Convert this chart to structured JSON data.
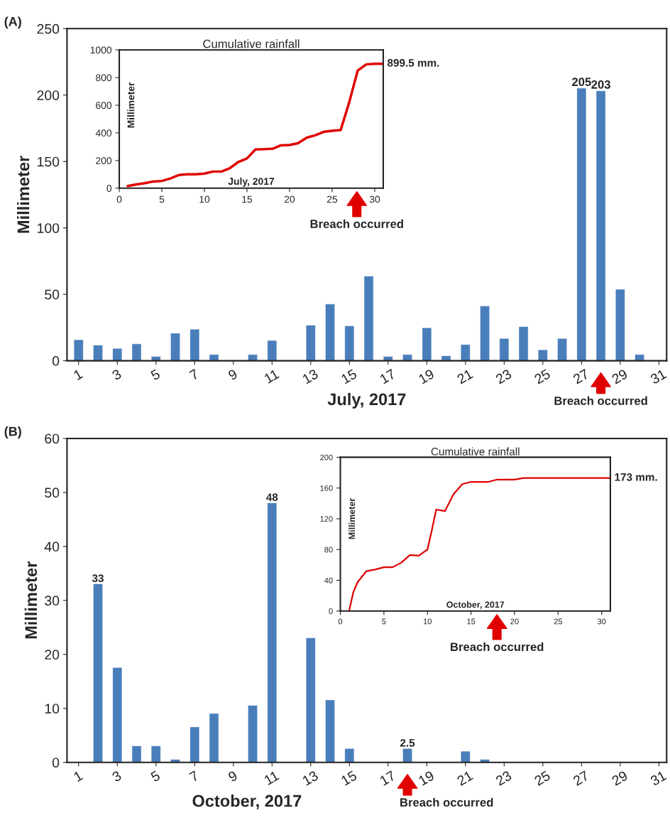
{
  "chart_data": [
    {
      "type": "bar",
      "x": [
        1,
        2,
        3,
        4,
        5,
        6,
        7,
        8,
        9,
        10,
        11,
        12,
        13,
        14,
        15,
        16,
        17,
        18,
        19,
        20,
        21,
        22,
        23,
        24,
        25,
        26,
        27,
        28,
        29,
        30,
        31
      ],
      "values": [
        15.5,
        11.5,
        9,
        12.5,
        3,
        20.5,
        23.5,
        4.5,
        0,
        4.5,
        15,
        0,
        26.5,
        42.5,
        26,
        63.5,
        3,
        4.5,
        24.5,
        3.5,
        12,
        41,
        16.5,
        25.5,
        8,
        16.5,
        205,
        203,
        53.5,
        4.5,
        0
      ],
      "value_labels": [
        null,
        null,
        null,
        null,
        null,
        null,
        null,
        null,
        null,
        null,
        null,
        null,
        null,
        null,
        null,
        null,
        null,
        null,
        null,
        null,
        null,
        null,
        null,
        null,
        null,
        null,
        "205",
        "203",
        null,
        null,
        null
      ],
      "color": "#4a7ebb",
      "xlim": [
        0.4,
        31.4
      ],
      "xticks": [
        1,
        3,
        5,
        7,
        9,
        11,
        13,
        15,
        17,
        19,
        21,
        23,
        25,
        27,
        29,
        31
      ],
      "ylim": [
        0,
        250
      ],
      "yticks": [
        0,
        50,
        100,
        150,
        200,
        250
      ],
      "xlabel": "July, 2017",
      "ylabel": "Millimeter",
      "annotations": [
        "(A)",
        {
          "text": "Breach occurred",
          "x": 28,
          "y": 0
        }
      ]
    },
    {
      "type": "line",
      "x": [
        1,
        2,
        3,
        4,
        5,
        6,
        7,
        8,
        9,
        10,
        11,
        12,
        13,
        14,
        15,
        16,
        17,
        18,
        19,
        20,
        21,
        22,
        23,
        24,
        25,
        26,
        27,
        28,
        29,
        30,
        31
      ],
      "values": [
        15,
        27,
        36,
        48,
        52,
        70,
        95,
        100,
        100,
        105,
        120,
        120,
        145,
        190,
        215,
        280,
        282,
        285,
        310,
        312,
        325,
        365,
        382,
        407,
        415,
        420,
        620,
        850,
        895,
        899.5,
        899.5
      ],
      "color": "#e00000",
      "xlim": [
        0,
        31
      ],
      "xticks": [
        0,
        5,
        10,
        15,
        20,
        25,
        30
      ],
      "ylim": [
        0,
        1000
      ],
      "yticks": [
        0,
        200,
        400,
        600,
        800,
        1000
      ],
      "title": "Cumulative rainfall",
      "xlabel": "July, 2017",
      "ylabel": "Millimeter",
      "annotations": [
        {
          "text": "899.5 mm.",
          "x": 31,
          "y": 899.5
        },
        "Breach occurred"
      ]
    },
    {
      "type": "bar",
      "x": [
        1,
        2,
        3,
        4,
        5,
        6,
        7,
        8,
        9,
        10,
        11,
        12,
        13,
        14,
        15,
        16,
        17,
        18,
        19,
        20,
        21,
        22,
        23,
        24,
        25,
        26,
        27,
        28,
        29,
        30,
        31
      ],
      "values": [
        0,
        33,
        17.5,
        3,
        3,
        0.5,
        6.5,
        9,
        0,
        10.5,
        48,
        0,
        23,
        11.5,
        2.5,
        0,
        0,
        2.5,
        0,
        0,
        2,
        0.5,
        0,
        0,
        0,
        0,
        0,
        0,
        0,
        0,
        0
      ],
      "value_labels": [
        null,
        "33",
        null,
        null,
        null,
        null,
        null,
        null,
        null,
        null,
        "48",
        null,
        null,
        null,
        null,
        null,
        null,
        "2.5",
        null,
        null,
        null,
        null,
        null,
        null,
        null,
        null,
        null,
        null,
        null,
        null,
        null
      ],
      "color": "#4a7ebb",
      "xlim": [
        0.4,
        31.4
      ],
      "xticks": [
        1,
        3,
        5,
        7,
        9,
        11,
        13,
        15,
        17,
        19,
        21,
        23,
        25,
        27,
        29,
        31
      ],
      "ylim": [
        0,
        60
      ],
      "yticks": [
        0,
        10,
        20,
        30,
        40,
        50,
        60
      ],
      "xlabel": "October, 2017",
      "ylabel": "Millimeter",
      "annotations": [
        "(B)",
        {
          "text": "Breach occurred",
          "x": 18,
          "y": 0
        }
      ]
    },
    {
      "type": "line",
      "x": [
        1,
        1.5,
        2,
        3,
        4,
        5,
        6,
        7,
        8,
        9,
        10,
        10.5,
        11,
        12,
        13,
        14,
        15,
        16,
        17,
        18,
        19,
        20,
        21,
        31
      ],
      "values": [
        0,
        25,
        38,
        52,
        54,
        57,
        57,
        63,
        73,
        72,
        80,
        105,
        132,
        130,
        152,
        165,
        168,
        168,
        168,
        171,
        171,
        171,
        173,
        173
      ],
      "color": "#e00000",
      "xlim": [
        0,
        31
      ],
      "xticks": [
        0,
        5,
        10,
        15,
        20,
        25,
        30
      ],
      "ylim": [
        0,
        200
      ],
      "yticks": [
        0,
        40,
        80,
        120,
        160,
        200
      ],
      "title": "Cumulative rainfall",
      "xlabel": "October, 2017",
      "ylabel": "Millimeter",
      "annotations": [
        {
          "text": "173 mm.",
          "x": 31,
          "y": 173
        },
        "Breach occurred"
      ]
    }
  ]
}
